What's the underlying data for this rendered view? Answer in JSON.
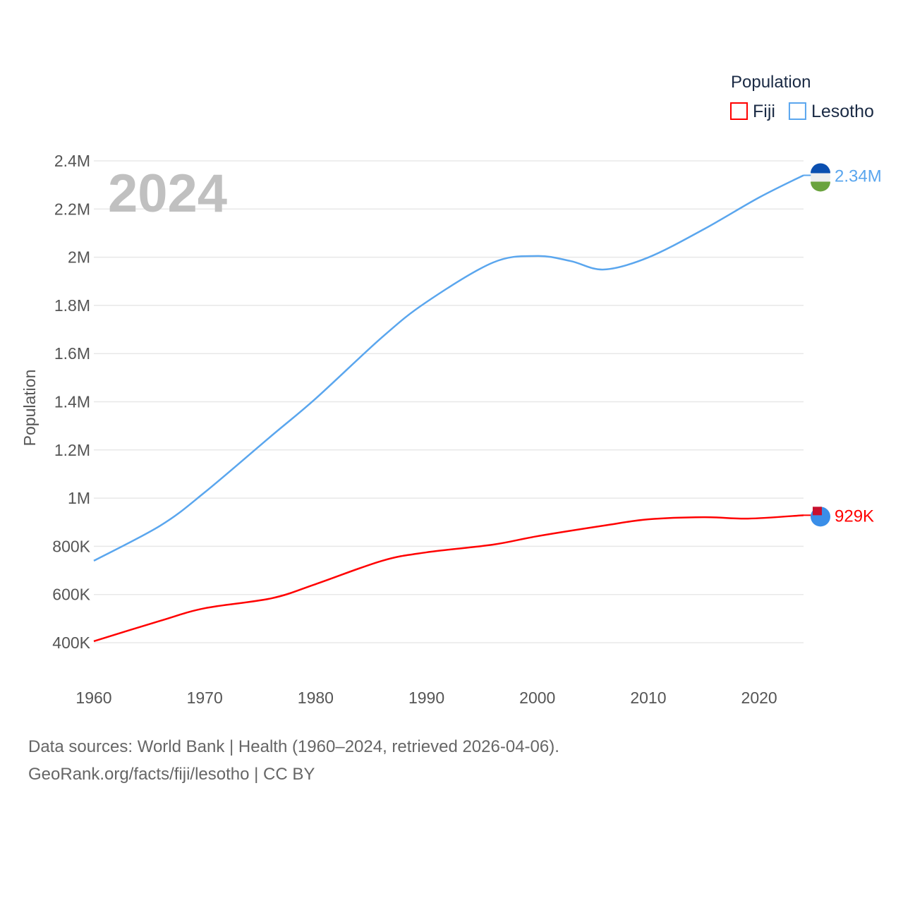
{
  "chart_data": {
    "type": "line",
    "title": "Population",
    "year_label": "2024",
    "ylabel": "Population",
    "xlabel": "",
    "xlim": [
      1960,
      2024
    ],
    "ylim": [
      400000,
      2400000
    ],
    "x_ticks": [
      1960,
      1970,
      1980,
      1990,
      2000,
      2010,
      2020
    ],
    "x_tick_labels": [
      "1960",
      "1970",
      "1980",
      "1990",
      "2000",
      "2010",
      "2020"
    ],
    "y_ticks": [
      400000,
      600000,
      800000,
      1000000,
      1200000,
      1400000,
      1600000,
      1800000,
      2000000,
      2200000,
      2400000
    ],
    "y_tick_labels": [
      "400K",
      "600K",
      "800K",
      "1M",
      "1.2M",
      "1.4M",
      "1.6M",
      "1.8M",
      "2M",
      "2.2M",
      "2.4M"
    ],
    "grid": true,
    "legend_position": "top-right",
    "series": [
      {
        "name": "Fiji",
        "color": "#ff0000",
        "end_label": "929K",
        "x": [
          1960,
          1966,
          1970,
          1976,
          1980,
          1986,
          1990,
          1996,
          2000,
          2006,
          2010,
          2015,
          2019,
          2024
        ],
        "values": [
          406000,
          491000,
          543000,
          584000,
          643000,
          740000,
          775000,
          807000,
          842000,
          886000,
          912000,
          921000,
          915000,
          929000
        ]
      },
      {
        "name": "Lesotho",
        "color": "#5aa6ee",
        "end_label": "2.34M",
        "x": [
          1960,
          1966,
          1970,
          1976,
          1980,
          1986,
          1990,
          1996,
          2000,
          2003,
          2006,
          2010,
          2015,
          2020,
          2024
        ],
        "values": [
          740000,
          886000,
          1024000,
          1258000,
          1413000,
          1668000,
          1814000,
          1978000,
          2005000,
          1984000,
          1949000,
          1999000,
          2116000,
          2248000,
          2340000
        ]
      }
    ]
  },
  "footer": {
    "line1": "Data sources: World Bank | Health (1960–2024, retrieved 2026-04-06).",
    "line2": "GeoRank.org/facts/fiji/lesotho | CC BY"
  }
}
